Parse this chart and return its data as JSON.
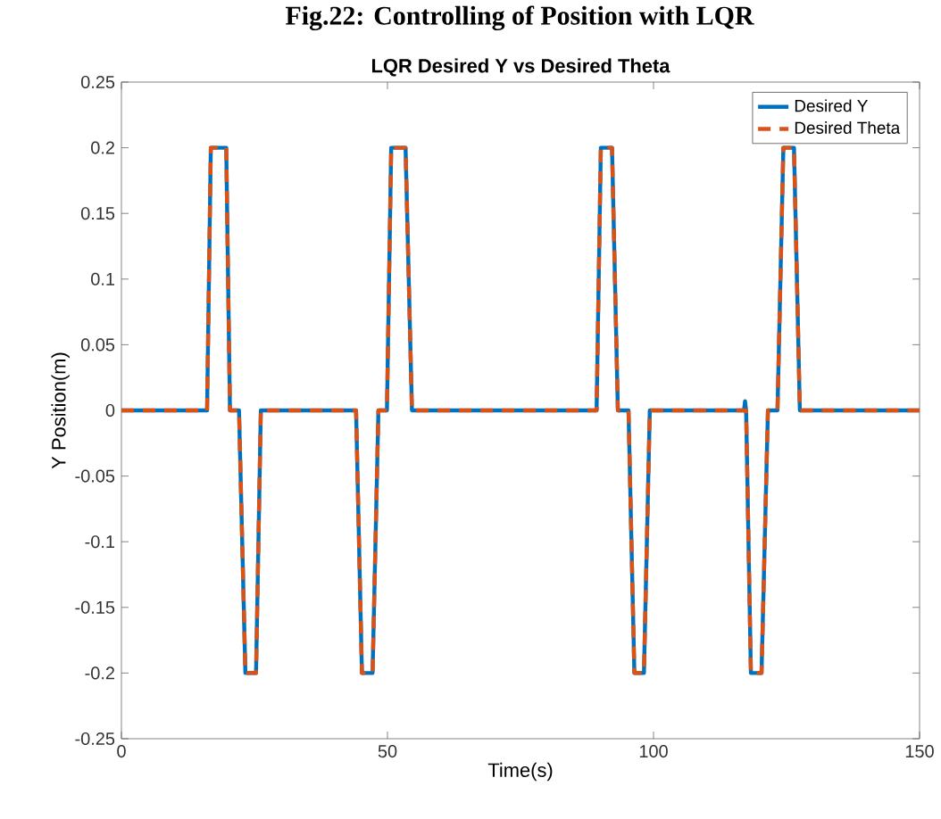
{
  "chart_data": {
    "type": "line",
    "title": "Fig.22: Controlling of Position with LQR",
    "subtitle": "LQR Desired Y  vs Desired Theta",
    "xlabel": "Time(s)",
    "ylabel": "Y Position(m)",
    "xlim": [
      0,
      150
    ],
    "ylim": [
      -0.25,
      0.25
    ],
    "xticks": [
      0,
      50,
      100,
      150
    ],
    "yticks": [
      -0.25,
      -0.2,
      -0.15,
      -0.1,
      -0.05,
      0,
      0.05,
      0.1,
      0.15,
      0.2,
      0.25
    ],
    "grid": false,
    "legend": "top right",
    "series": [
      {
        "name": "Desired Y",
        "color": "#0072bd",
        "line_style": "solid",
        "x": [
          0,
          16.1,
          16.8,
          19.7,
          20.4,
          22.1,
          23.3,
          25.3,
          26.2,
          44.1,
          45.2,
          47.2,
          48.3,
          49.9,
          50.7,
          53.4,
          54.6,
          89.3,
          90.1,
          92.2,
          93.3,
          95.3,
          96.4,
          98.2,
          99.3,
          117.0,
          117.2,
          117.4,
          118.3,
          120.3,
          121.5,
          123.3,
          124.4,
          126.4,
          127.5,
          150
        ],
        "values": [
          0,
          0,
          0.2,
          0.2,
          0,
          0,
          -0.2,
          -0.2,
          0,
          0,
          -0.2,
          -0.2,
          0,
          0,
          0.2,
          0.2,
          0,
          0,
          0.2,
          0.2,
          0,
          0,
          -0.2,
          -0.2,
          0,
          0,
          0.007,
          0,
          -0.2,
          -0.2,
          0,
          0,
          0.2,
          0.2,
          0,
          0
        ]
      },
      {
        "name": "Desired Theta",
        "color": "#d95319",
        "line_style": "dashed",
        "x": [
          0,
          16.1,
          16.8,
          19.7,
          20.4,
          22.1,
          23.3,
          25.3,
          26.2,
          44.1,
          45.2,
          47.2,
          48.3,
          49.9,
          50.7,
          53.4,
          54.6,
          89.3,
          90.1,
          92.2,
          93.3,
          95.3,
          96.4,
          98.2,
          99.3,
          117.4,
          118.3,
          120.3,
          121.5,
          123.3,
          124.4,
          126.4,
          127.5,
          150
        ],
        "values": [
          0,
          0,
          0.2,
          0.2,
          0,
          0,
          -0.2,
          -0.2,
          0,
          0,
          -0.2,
          -0.2,
          0,
          0,
          0.2,
          0.2,
          0,
          0,
          0.2,
          0.2,
          0,
          0,
          -0.2,
          -0.2,
          0,
          0,
          -0.2,
          -0.2,
          0,
          0,
          0.2,
          0.2,
          0,
          0
        ]
      }
    ]
  }
}
